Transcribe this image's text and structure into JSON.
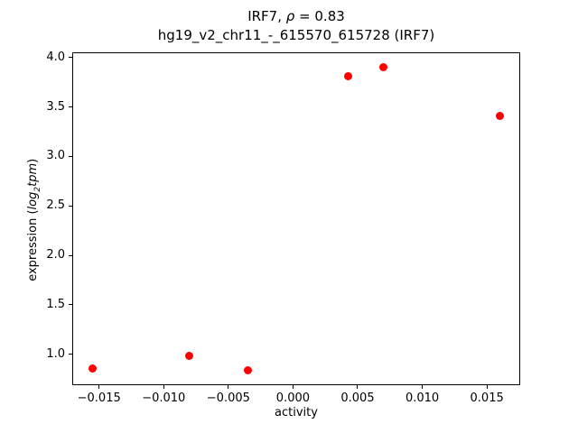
{
  "title": {
    "line1_parts": {
      "prefix": "IRF7, ",
      "rho": "ρ",
      "suffix": " = 0.83"
    },
    "line2": "hg19_v2_chr11_-_615570_615728 (IRF7)"
  },
  "ylabel_parts": {
    "prefix": "expression (",
    "italic1": "log",
    "sub": "2",
    "italic2": "tpm",
    "suffix": ")"
  },
  "chart_data": {
    "type": "scatter",
    "title": "IRF7, ρ = 0.83",
    "subtitle": "hg19_v2_chr11_-_615570_615728 (IRF7)",
    "xlabel": "activity",
    "ylabel": "expression (log2tpm)",
    "x": [
      -0.0155,
      -0.008,
      -0.0035,
      0.0043,
      0.007,
      0.016
    ],
    "y": [
      0.86,
      0.98,
      0.84,
      3.81,
      3.9,
      3.41
    ],
    "marker_color": "#ff0000",
    "marker_style": "circle",
    "xlim": [
      -0.017075,
      0.017575
    ],
    "ylim": [
      0.687,
      4.053
    ],
    "xticks": [
      -0.015,
      -0.01,
      -0.005,
      0.0,
      0.005,
      0.01,
      0.015
    ],
    "yticks": [
      1.0,
      1.5,
      2.0,
      2.5,
      3.0,
      3.5,
      4.0
    ],
    "grid": false,
    "legend": null
  }
}
